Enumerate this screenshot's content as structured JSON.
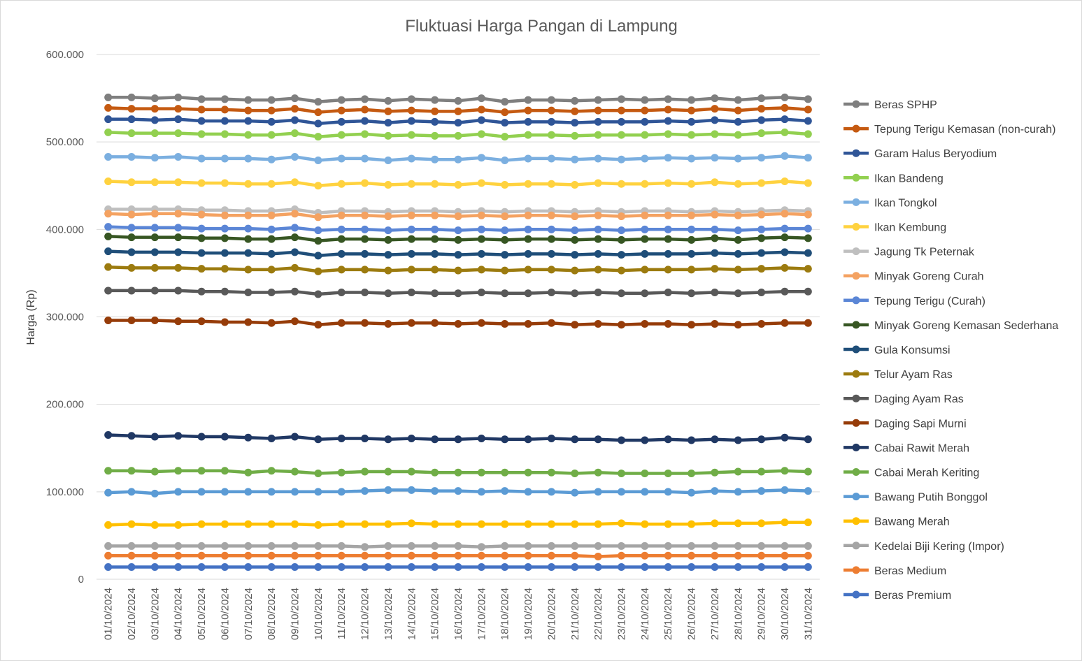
{
  "chart_data": {
    "type": "line",
    "title": "Fluktuasi Harga Pangan di Lampung",
    "xlabel": "",
    "ylabel": "Harga (Rp)",
    "ylim": [
      0,
      600000
    ],
    "y_ticks": [
      0,
      100000,
      200000,
      300000,
      400000,
      500000,
      600000
    ],
    "y_tick_labels": [
      "0",
      "100.000",
      "200.000",
      "300.000",
      "400.000",
      "500.000",
      "600.000"
    ],
    "grid": true,
    "legend_position": "right",
    "categories": [
      "01/10/2024",
      "02/10/2024",
      "03/10/2024",
      "04/10/2024",
      "05/10/2024",
      "06/10/2024",
      "07/10/2024",
      "08/10/2024",
      "09/10/2024",
      "10/10/2024",
      "11/10/2024",
      "12/10/2024",
      "13/10/2024",
      "14/10/2024",
      "15/10/2024",
      "16/10/2024",
      "17/10/2024",
      "18/10/2024",
      "19/10/2024",
      "20/10/2024",
      "21/10/2024",
      "22/10/2024",
      "23/10/2024",
      "24/10/2024",
      "25/10/2024",
      "26/10/2024",
      "27/10/2024",
      "28/10/2024",
      "29/10/2024",
      "30/10/2024",
      "31/10/2024"
    ],
    "series": [
      {
        "name": "Beras SPHP",
        "color": "#7f7f7f",
        "values": [
          551000,
          551000,
          550000,
          551000,
          549000,
          549000,
          548000,
          548000,
          550000,
          546000,
          548000,
          549000,
          547000,
          549000,
          548000,
          547000,
          550000,
          546000,
          548000,
          548000,
          547000,
          548000,
          549000,
          548000,
          549000,
          548000,
          550000,
          548000,
          550000,
          551000,
          549000
        ]
      },
      {
        "name": "Tepung Terigu Kemasan (non-curah)",
        "color": "#c55a11",
        "values": [
          539000,
          538000,
          538000,
          538000,
          537000,
          537000,
          536000,
          536000,
          538000,
          534000,
          536000,
          537000,
          535000,
          536000,
          535000,
          535000,
          537000,
          534000,
          536000,
          536000,
          535000,
          536000,
          536000,
          536000,
          537000,
          536000,
          538000,
          536000,
          538000,
          539000,
          537000
        ]
      },
      {
        "name": "Garam Halus Beryodium",
        "color": "#2f5597",
        "values": [
          526000,
          526000,
          525000,
          526000,
          524000,
          524000,
          524000,
          523000,
          525000,
          521000,
          523000,
          524000,
          522000,
          524000,
          523000,
          522000,
          525000,
          522000,
          523000,
          523000,
          522000,
          523000,
          523000,
          523000,
          524000,
          523000,
          525000,
          523000,
          525000,
          526000,
          524000
        ]
      },
      {
        "name": "Ikan Bandeng",
        "color": "#92d050",
        "values": [
          511000,
          510000,
          510000,
          510000,
          509000,
          509000,
          508000,
          508000,
          510000,
          506000,
          508000,
          509000,
          507000,
          508000,
          507000,
          507000,
          509000,
          506000,
          508000,
          508000,
          507000,
          508000,
          508000,
          508000,
          509000,
          508000,
          509000,
          508000,
          510000,
          511000,
          509000
        ]
      },
      {
        "name": "Ikan Tongkol",
        "color": "#7bafe0",
        "values": [
          483000,
          483000,
          482000,
          483000,
          481000,
          481000,
          481000,
          480000,
          483000,
          479000,
          481000,
          481000,
          479000,
          481000,
          480000,
          480000,
          482000,
          479000,
          481000,
          481000,
          480000,
          481000,
          480000,
          481000,
          482000,
          481000,
          482000,
          481000,
          482000,
          484000,
          482000
        ]
      },
      {
        "name": "Ikan Kembung",
        "color": "#ffd23f",
        "values": [
          455000,
          454000,
          454000,
          454000,
          453000,
          453000,
          452000,
          452000,
          454000,
          450000,
          452000,
          453000,
          451000,
          452000,
          452000,
          451000,
          453000,
          451000,
          452000,
          452000,
          451000,
          453000,
          452000,
          452000,
          453000,
          452000,
          454000,
          452000,
          453000,
          455000,
          453000
        ]
      },
      {
        "name": "Jagung Tk Peternak",
        "color": "#bfbfbf",
        "values": [
          423000,
          423000,
          423000,
          423000,
          422000,
          422000,
          421000,
          421000,
          423000,
          419000,
          421000,
          421000,
          420000,
          421000,
          421000,
          420000,
          421000,
          420000,
          421000,
          421000,
          420000,
          421000,
          420000,
          421000,
          421000,
          420000,
          421000,
          420000,
          421000,
          422000,
          421000
        ]
      },
      {
        "name": "Minyak Goreng Curah",
        "color": "#f4a261",
        "values": [
          418000,
          417000,
          418000,
          418000,
          417000,
          416000,
          416000,
          416000,
          418000,
          414000,
          416000,
          416000,
          415000,
          416000,
          416000,
          415000,
          416000,
          415000,
          416000,
          416000,
          415000,
          416000,
          415000,
          416000,
          416000,
          416000,
          417000,
          416000,
          417000,
          418000,
          417000
        ]
      },
      {
        "name": "Tepung Terigu (Curah)",
        "color": "#5b86d6",
        "values": [
          403000,
          402000,
          402000,
          402000,
          401000,
          401000,
          401000,
          400000,
          402000,
          399000,
          400000,
          400000,
          399000,
          400000,
          400000,
          399000,
          400000,
          399000,
          400000,
          400000,
          399000,
          400000,
          399000,
          400000,
          400000,
          400000,
          400000,
          399000,
          400000,
          401000,
          401000
        ]
      },
      {
        "name": "Minyak Goreng Kemasan Sederhana",
        "color": "#375623",
        "values": [
          392000,
          391000,
          391000,
          391000,
          390000,
          390000,
          389000,
          389000,
          391000,
          387000,
          389000,
          389000,
          388000,
          389000,
          389000,
          388000,
          389000,
          388000,
          389000,
          389000,
          388000,
          389000,
          388000,
          389000,
          389000,
          388000,
          390000,
          388000,
          390000,
          391000,
          390000
        ]
      },
      {
        "name": "Gula Konsumsi",
        "color": "#1f4e79",
        "values": [
          375000,
          374000,
          374000,
          374000,
          373000,
          373000,
          373000,
          372000,
          374000,
          370000,
          372000,
          372000,
          371000,
          372000,
          372000,
          371000,
          372000,
          371000,
          372000,
          372000,
          371000,
          372000,
          371000,
          372000,
          372000,
          372000,
          373000,
          372000,
          373000,
          374000,
          373000
        ]
      },
      {
        "name": "Telur Ayam Ras",
        "color": "#9c7b0f",
        "values": [
          357000,
          356000,
          356000,
          356000,
          355000,
          355000,
          354000,
          354000,
          356000,
          352000,
          354000,
          354000,
          353000,
          354000,
          354000,
          353000,
          354000,
          353000,
          354000,
          354000,
          353000,
          354000,
          353000,
          354000,
          354000,
          354000,
          355000,
          354000,
          355000,
          356000,
          355000
        ]
      },
      {
        "name": "Daging Ayam Ras",
        "color": "#595959",
        "values": [
          330000,
          330000,
          330000,
          330000,
          329000,
          329000,
          328000,
          328000,
          329000,
          326000,
          328000,
          328000,
          327000,
          328000,
          327000,
          327000,
          328000,
          327000,
          327000,
          328000,
          327000,
          328000,
          327000,
          327000,
          328000,
          327000,
          328000,
          327000,
          328000,
          329000,
          329000
        ]
      },
      {
        "name": "Daging Sapi Murni",
        "color": "#963c09",
        "values": [
          296000,
          296000,
          296000,
          295000,
          295000,
          294000,
          294000,
          293000,
          295000,
          291000,
          293000,
          293000,
          292000,
          293000,
          293000,
          292000,
          293000,
          292000,
          292000,
          293000,
          291000,
          292000,
          291000,
          292000,
          292000,
          291000,
          292000,
          291000,
          292000,
          293000,
          293000
        ]
      },
      {
        "name": "Cabai Rawit Merah",
        "color": "#203864",
        "values": [
          165000,
          164000,
          163000,
          164000,
          163000,
          163000,
          162000,
          161000,
          163000,
          160000,
          161000,
          161000,
          160000,
          161000,
          160000,
          160000,
          161000,
          160000,
          160000,
          161000,
          160000,
          160000,
          159000,
          159000,
          160000,
          159000,
          160000,
          159000,
          160000,
          162000,
          160000
        ]
      },
      {
        "name": "Cabai Merah Keriting",
        "color": "#70ad47",
        "values": [
          124000,
          124000,
          123000,
          124000,
          124000,
          124000,
          122000,
          124000,
          123000,
          121000,
          122000,
          123000,
          123000,
          123000,
          122000,
          122000,
          122000,
          122000,
          122000,
          122000,
          121000,
          122000,
          121000,
          121000,
          121000,
          121000,
          122000,
          123000,
          123000,
          124000,
          123000
        ]
      },
      {
        "name": "Bawang Putih Bonggol",
        "color": "#5b9bd5",
        "values": [
          99000,
          100000,
          98000,
          100000,
          100000,
          100000,
          100000,
          100000,
          100000,
          100000,
          100000,
          101000,
          102000,
          102000,
          101000,
          101000,
          100000,
          101000,
          100000,
          100000,
          99000,
          100000,
          100000,
          100000,
          100000,
          99000,
          101000,
          100000,
          101000,
          102000,
          101000
        ]
      },
      {
        "name": "Bawang Merah",
        "color": "#ffc000",
        "values": [
          62000,
          63000,
          62000,
          62000,
          63000,
          63000,
          63000,
          63000,
          63000,
          62000,
          63000,
          63000,
          63000,
          64000,
          63000,
          63000,
          63000,
          63000,
          63000,
          63000,
          63000,
          63000,
          64000,
          63000,
          63000,
          63000,
          64000,
          64000,
          64000,
          65000,
          65000
        ]
      },
      {
        "name": "Kedelai Biji Kering (Impor)",
        "color": "#a5a5a5",
        "values": [
          38000,
          38000,
          38000,
          38000,
          38000,
          38000,
          38000,
          38000,
          38000,
          38000,
          38000,
          37000,
          38000,
          38000,
          38000,
          38000,
          37000,
          38000,
          38000,
          38000,
          38000,
          38000,
          38000,
          38000,
          38000,
          38000,
          38000,
          38000,
          38000,
          38000,
          38000
        ]
      },
      {
        "name": "Beras Medium",
        "color": "#ed7d31",
        "values": [
          27000,
          27000,
          27000,
          27000,
          27000,
          27000,
          27000,
          27000,
          27000,
          27000,
          27000,
          27000,
          27000,
          27000,
          27000,
          27000,
          27000,
          27000,
          27000,
          27000,
          27000,
          26000,
          27000,
          27000,
          27000,
          27000,
          27000,
          27000,
          27000,
          27000,
          27000
        ]
      },
      {
        "name": "Beras Premium",
        "color": "#4472c4",
        "values": [
          14000,
          14000,
          14000,
          14000,
          14000,
          14000,
          14000,
          14000,
          14000,
          14000,
          14000,
          14000,
          14000,
          14000,
          14000,
          14000,
          14000,
          14000,
          14000,
          14000,
          14000,
          14000,
          14000,
          14000,
          14000,
          14000,
          14000,
          14000,
          14000,
          14000,
          14000
        ]
      }
    ]
  }
}
